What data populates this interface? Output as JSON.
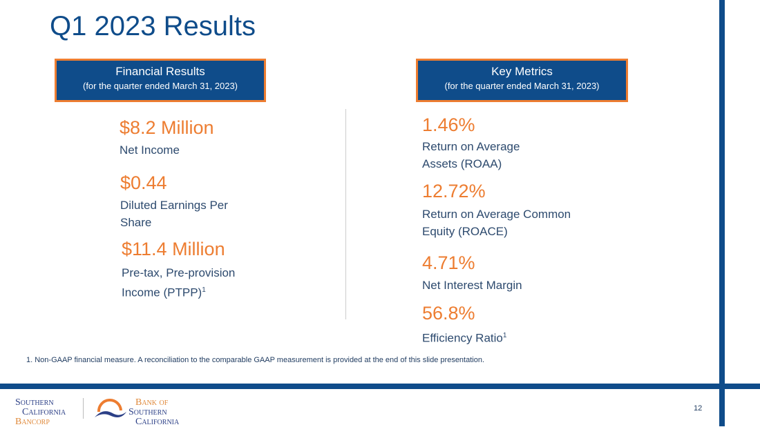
{
  "title": "Q1 2023 Results",
  "financial": {
    "header": "Financial Results",
    "subheader": "(for the quarter ended March 31, 2023)",
    "items": [
      {
        "value": "$8.2 Million",
        "label": "Net Income"
      },
      {
        "value": "$0.44",
        "label": "Diluted Earnings Per Share"
      },
      {
        "value": "$11.4 Million",
        "label": "Pre-tax, Pre-provision Income (PTPP)",
        "sup": "1"
      }
    ]
  },
  "metrics": {
    "header": "Key Metrics",
    "subheader": "(for the quarter ended March 31, 2023)",
    "items": [
      {
        "value": "1.46%",
        "label": "Return on Average Assets (ROAA)"
      },
      {
        "value": "12.72%",
        "label": "Return on Average Common Equity (ROACE)"
      },
      {
        "value": "4.71%",
        "label": "Net Interest Margin"
      },
      {
        "value": "56.8%",
        "label": "Efficiency Ratio",
        "sup": "1"
      }
    ]
  },
  "footnote": "1.   Non-GAAP financial measure. A reconciliation to the comparable GAAP measurement is provided at the end of this slide presentation.",
  "logo1": [
    "Southern",
    "California",
    "Bancorp"
  ],
  "logo2": [
    "Bank of",
    "Southern",
    "California"
  ],
  "page_number": "12"
}
